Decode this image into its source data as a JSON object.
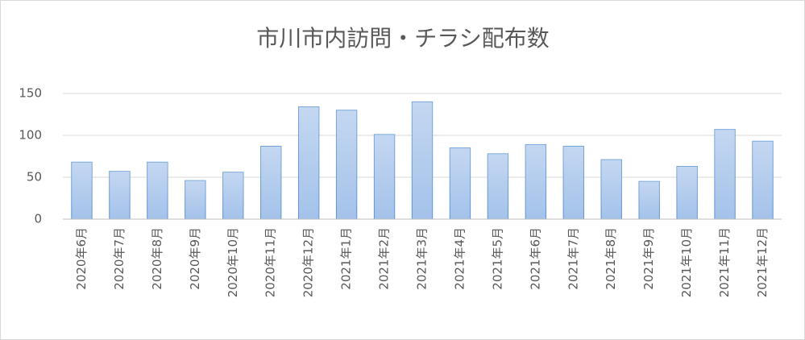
{
  "chart_data": {
    "type": "bar",
    "title": "市川市内訪問・チラシ配布数",
    "categories": [
      "2020年6月",
      "2020年7月",
      "2020年8月",
      "2020年9月",
      "2020年10月",
      "2020年11月",
      "2020年12月",
      "2021年1月",
      "2021年2月",
      "2021年3月",
      "2021年4月",
      "2021年5月",
      "2021年6月",
      "2021年7月",
      "2021年8月",
      "2021年9月",
      "2021年10月",
      "2021年11月",
      "2021年12月"
    ],
    "values": [
      68,
      57,
      68,
      46,
      56,
      87,
      134,
      130,
      101,
      140,
      85,
      78,
      89,
      87,
      71,
      45,
      63,
      107,
      93
    ],
    "color": "#a4c2ea",
    "ylim": [
      0,
      150
    ],
    "yticks": [
      0,
      50,
      100,
      150
    ],
    "grid": true
  }
}
